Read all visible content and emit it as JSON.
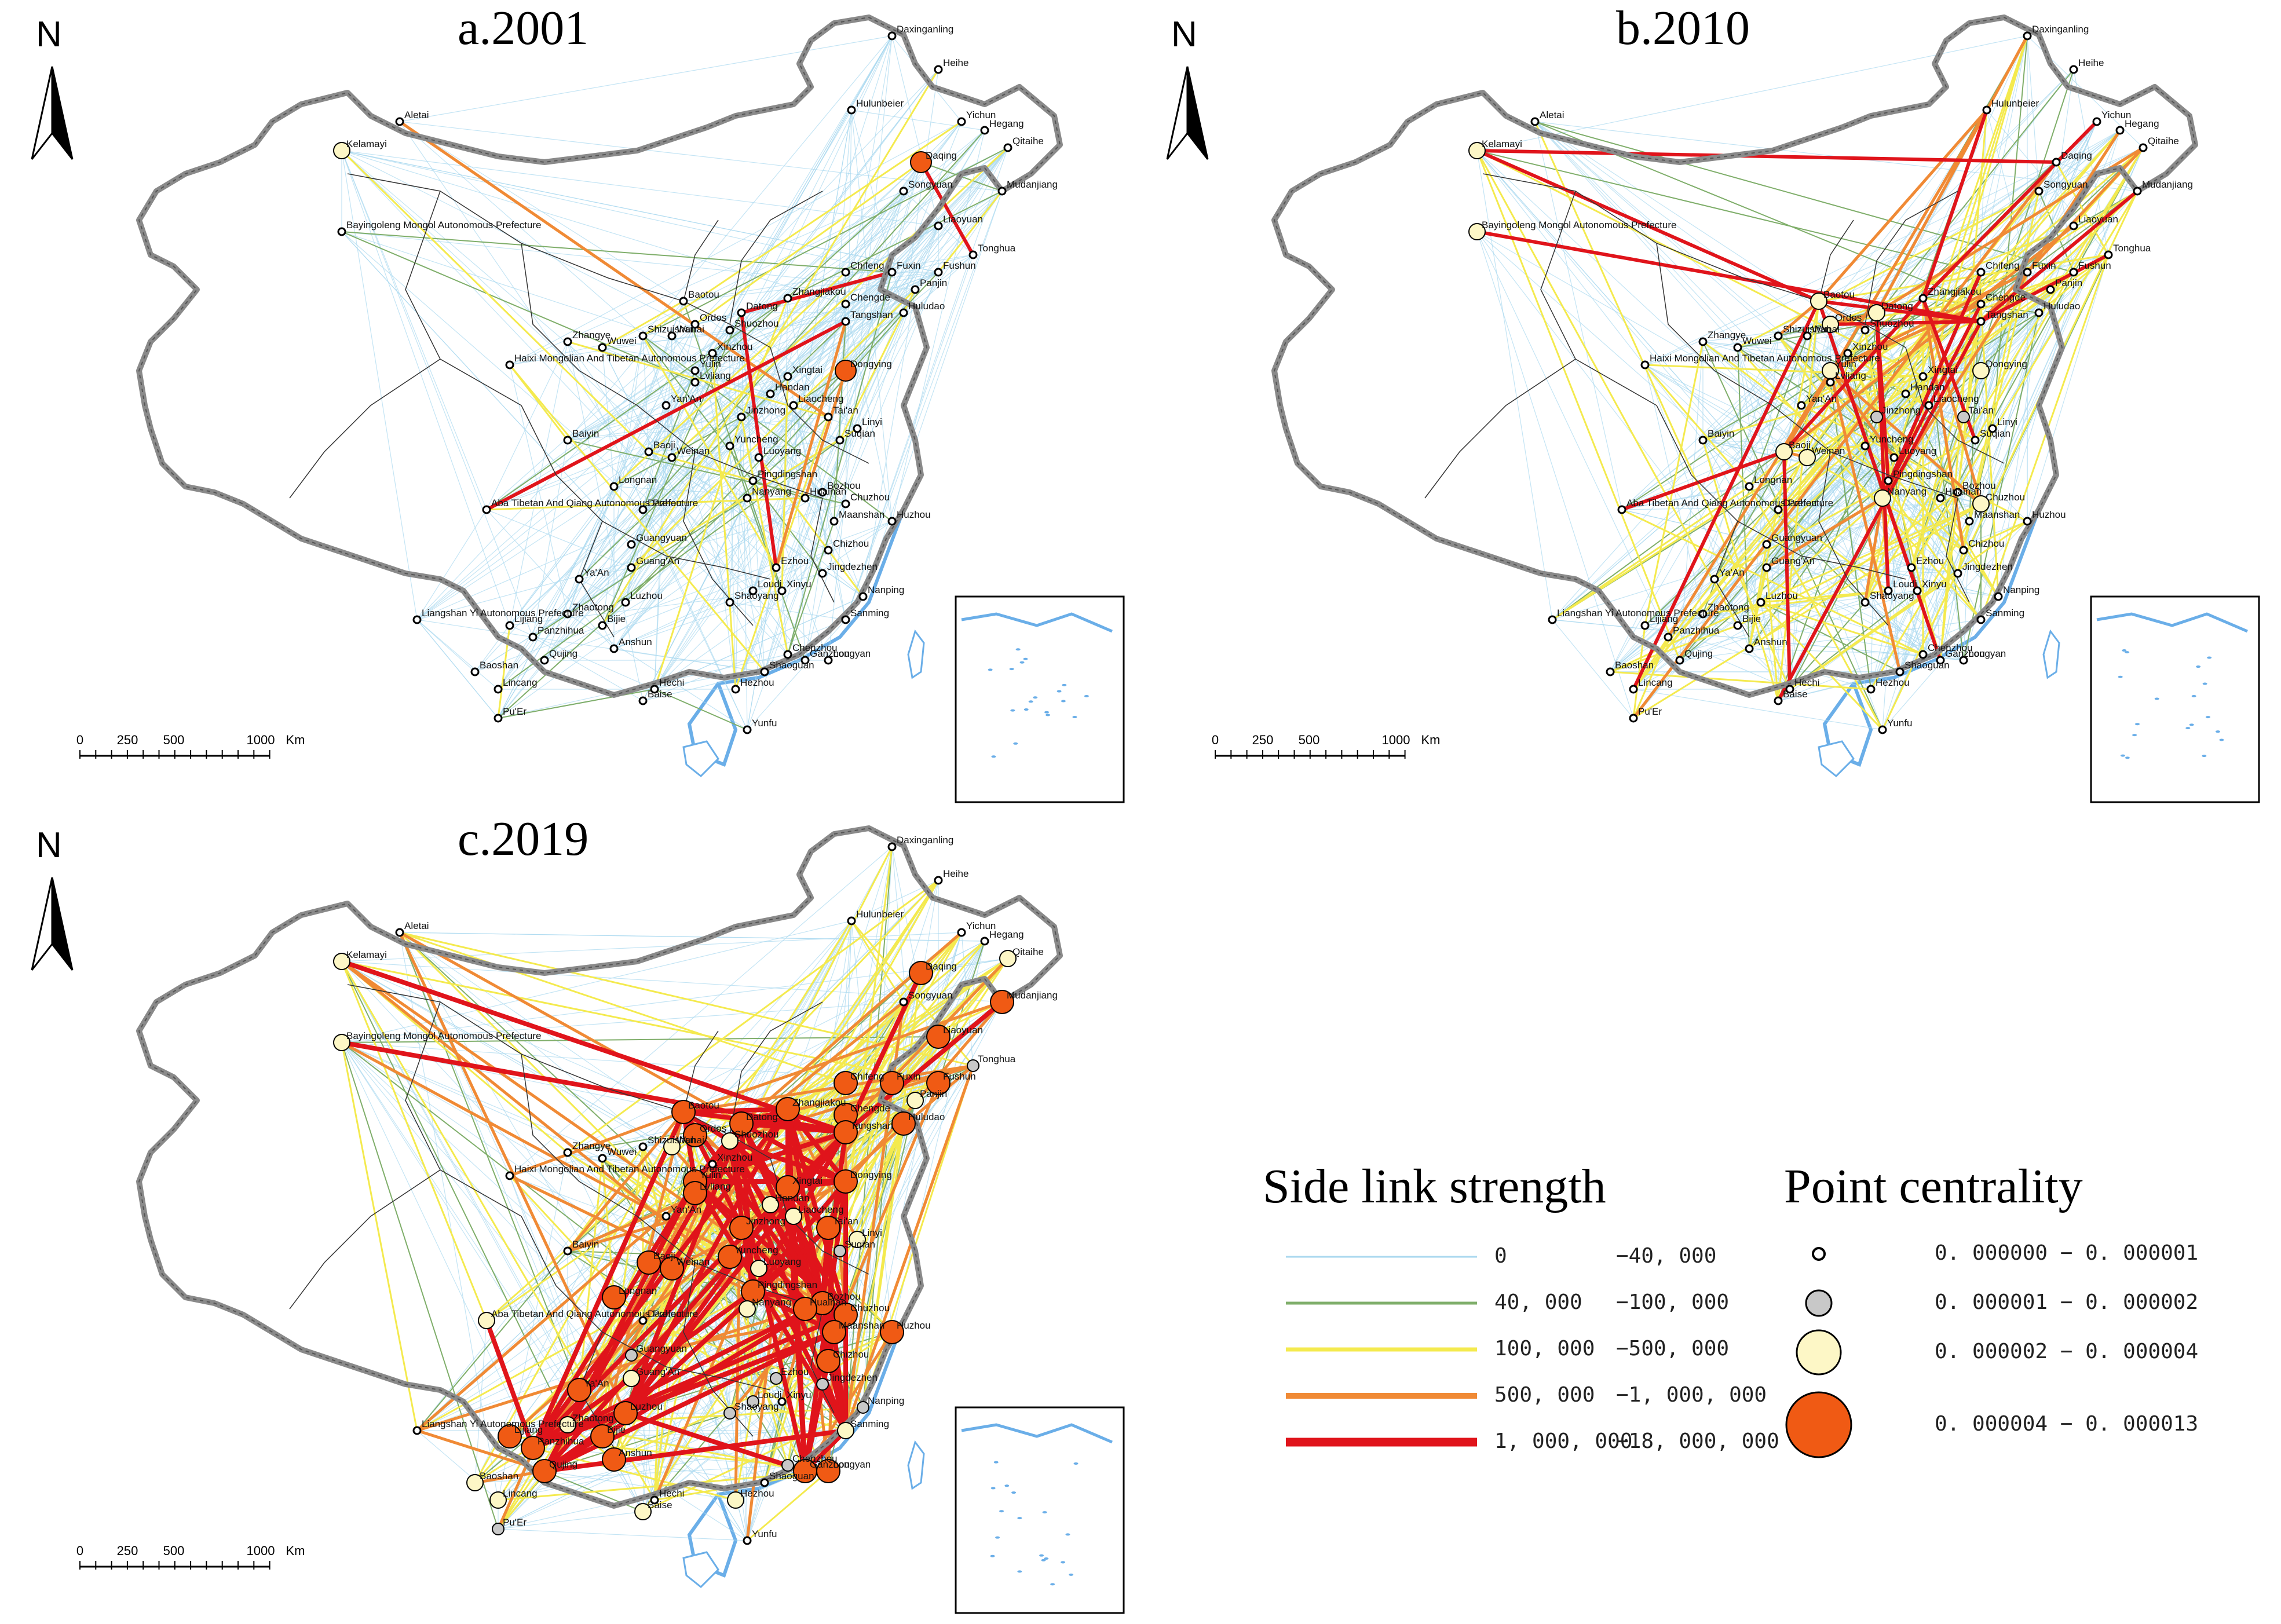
{
  "north_label": "N",
  "panels": [
    {
      "title": "a.2001"
    },
    {
      "title": "b.2010"
    },
    {
      "title": "c.2019"
    }
  ],
  "scale_labels": [
    "0",
    "250",
    "500",
    "1000",
    "Km"
  ],
  "cities": [
    "Daxinganling",
    "Heihe",
    "Hulunbeier",
    "Yichun",
    "Hegang",
    "Qitaihe",
    "Daqing",
    "Songyuan",
    "Mudanjiang",
    "Liaoyuan",
    "Tonghua",
    "Chifeng",
    "Fuxin",
    "Fushun",
    "Panjin",
    "Huludao",
    "Chengde",
    "Zhangjiakou",
    "Baotou",
    "Datong",
    "Shuozhou",
    "Tangshan",
    "Ordos",
    "Wuhai",
    "Shizuishan",
    "Zhangye",
    "Wuwei",
    "Xinzhou",
    "Yulin",
    "Dongying",
    "Xingtai",
    "Lvliang",
    "Handan",
    "Yan'An",
    "Liaocheng",
    "Tai'an",
    "Jinzhong",
    "Linyi",
    "Yuncheng",
    "Luoyang",
    "Baoji",
    "Weinan",
    "Pingdingshan",
    "Suqian",
    "Nanyang",
    "Bozhou",
    "Huainan",
    "Chuzhou",
    "Huzhou",
    "Maanshan",
    "Chizhou",
    "Dazhou",
    "Guangyuan",
    "Longnan",
    "Guang'An",
    "Ya'An",
    "Luzhou",
    "Zhaotong",
    "Bijie",
    "Lijiang",
    "Panzhihua",
    "Anshun",
    "Qujing",
    "Baoshan",
    "Lincang",
    "Pu'Er",
    "Baise",
    "Hechi",
    "Hezhou",
    "Yunfu",
    "Shaoguan",
    "Ganzhou",
    "Chenzhou",
    "Longyan",
    "Sanming",
    "Nanping",
    "Jingdezhen",
    "Ezhou",
    "Loudi",
    "Xinyu",
    "Shaoyang",
    "Baiyin",
    "Kelamayi",
    "Aletai",
    "Bayingoleng Mongol Autonomous Prefecture",
    "Haixi Mongolian And Tibetan Autonomous Prefecture",
    "Aba Tibetan And Qiang Autonomous Prefecture",
    "Liangshan Yi Autonomous Prefecture"
  ],
  "legend": {
    "link_title": "Side link strength",
    "centrality_title": "Point centrality",
    "link_classes": [
      {
        "from": "0",
        "to": "−40, 000",
        "color": "#a9d8ef"
      },
      {
        "from": "40, 000",
        "to": "−100, 000",
        "color": "#7fae6a"
      },
      {
        "from": "100, 000",
        "to": "−500, 000",
        "color": "#f4ea4e"
      },
      {
        "from": "500, 000",
        "to": "−1, 000, 000",
        "color": "#f08a35"
      },
      {
        "from": "1, 000, 000",
        "to": "−18, 000, 000",
        "color": "#e0141b"
      }
    ],
    "centrality_classes": [
      {
        "range": "0. 000000  −  0. 000001",
        "fill": "#ffffff"
      },
      {
        "range": "0. 000001  −  0. 000002",
        "fill": "#c8c8c8"
      },
      {
        "range": "0. 000002  −  0. 000004",
        "fill": "#fdf7c6"
      },
      {
        "range": "0. 000004  −  0. 000013",
        "fill": "#f05a14"
      }
    ]
  },
  "colors": {
    "boundary": "#8a8a8a",
    "coast": "#6aaee8",
    "province": "#333333"
  }
}
